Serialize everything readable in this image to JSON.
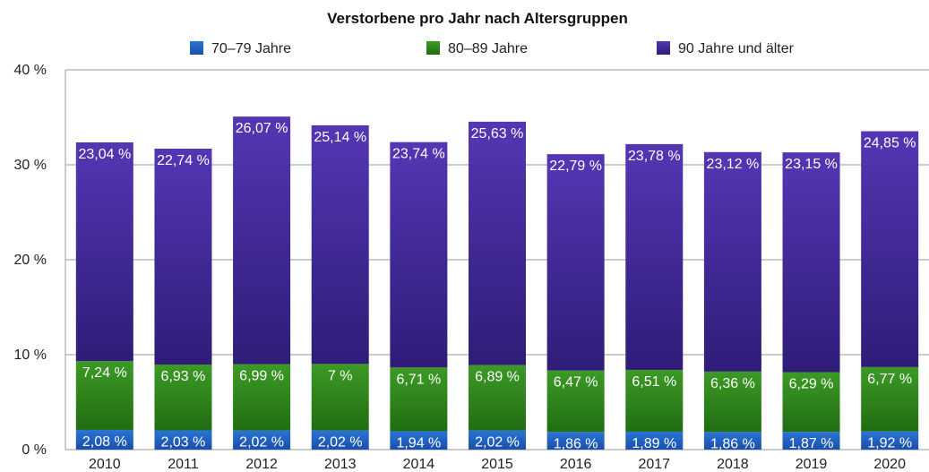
{
  "chart_data": {
    "type": "bar",
    "stacked": true,
    "title": "Verstorbene pro Jahr nach Altersgruppen",
    "xlabel": "",
    "ylabel": "",
    "ylim": [
      0,
      40
    ],
    "y_ticks": [
      "0 %",
      "10 %",
      "20 %",
      "30 %",
      "40 %"
    ],
    "grid": true,
    "legend_position": "top",
    "categories": [
      "2010",
      "2011",
      "2012",
      "2013",
      "2014",
      "2015",
      "2016",
      "2017",
      "2018",
      "2019",
      "2020"
    ],
    "series": [
      {
        "name": "70–79 Jahre",
        "color": "#1f5fbf",
        "values": [
          2.08,
          2.03,
          2.02,
          2.02,
          1.94,
          2.02,
          1.86,
          1.89,
          1.86,
          1.87,
          1.92
        ],
        "labels": [
          "2,08 %",
          "2,03 %",
          "2,02 %",
          "2,02 %",
          "1,94 %",
          "2,02 %",
          "1,86 %",
          "1,89 %",
          "1,86 %",
          "1,87 %",
          "1,92 %"
        ]
      },
      {
        "name": "80–89 Jahre",
        "color": "#2e8a1c",
        "values": [
          7.24,
          6.93,
          6.99,
          7,
          6.71,
          6.89,
          6.47,
          6.51,
          6.36,
          6.29,
          6.77
        ],
        "labels": [
          "7,24 %",
          "6,93 %",
          "6,99 %",
          "7 %",
          "6,71 %",
          "6,89 %",
          "6,47 %",
          "6,51 %",
          "6,36 %",
          "6,29 %",
          "6,77 %"
        ]
      },
      {
        "name": "90 Jahre und älter",
        "color": "#4a2aa0",
        "values": [
          23.04,
          22.74,
          26.07,
          25.14,
          23.74,
          25.63,
          22.79,
          23.78,
          23.12,
          23.15,
          24.85
        ],
        "labels": [
          "23,04 %",
          "22,74 %",
          "26,07 %",
          "25,14 %",
          "23,74 %",
          "25,63 %",
          "22,79 %",
          "23,78 %",
          "23,12 %",
          "23,15 %",
          "24,85 %"
        ]
      }
    ]
  }
}
